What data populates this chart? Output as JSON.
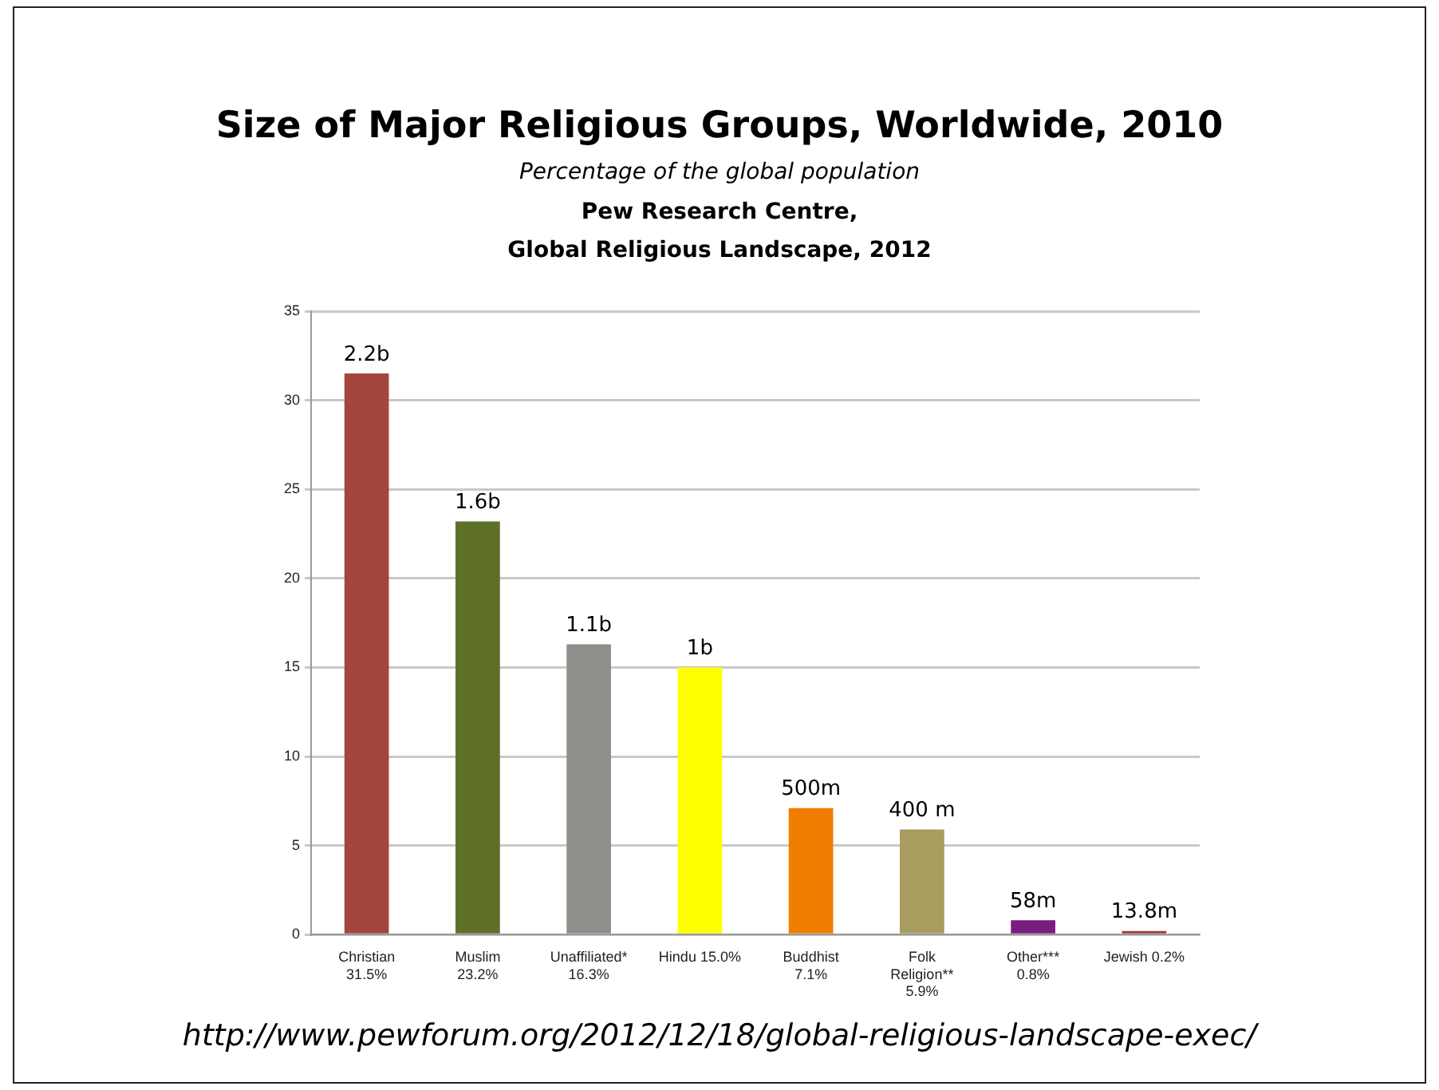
{
  "chart_data": {
    "type": "bar",
    "title": "Size of Major Religious Groups, Worldwide, 2010",
    "subtitle": "Percentage of the global population",
    "annotations": [
      "Pew Research Centre,\nGlobal Religious Landscape, 2012",
      "http://www.pewforum.org/2012/12/18/global-religious-landscape-exec/",
      {
        "text": "2.2b",
        "x": "Christian\n31.5%",
        "y": 31.5
      },
      {
        "text": "1.6b",
        "x": "Muslim\n23.2%",
        "y": 23.2
      },
      {
        "text": "1.1b",
        "x": "Unaffiliated*\n16.3%",
        "y": 16.3
      },
      {
        "text": "1b",
        "x": "Hindu 15.0%",
        "y": 15.0
      },
      {
        "text": "500m",
        "x": "Buddhist\n7.1%",
        "y": 7.1
      },
      {
        "text": "400 m",
        "x": "Folk\nReligion**\n5.9%",
        "y": 5.9
      },
      {
        "text": "58m",
        "x": "Other***\n0.8%",
        "y": 0.8
      },
      {
        "text": "13.8m",
        "x": "Jewish 0.2%",
        "y": 0.2
      }
    ],
    "categories": [
      "Christian\n31.5%",
      "Muslim\n23.2%",
      "Unaffiliated*\n16.3%",
      "Hindu 15.0%",
      "Buddhist\n7.1%",
      "Folk\nReligion**\n5.9%",
      "Other***\n0.8%",
      "Jewish 0.2%"
    ],
    "values": [
      31.5,
      23.2,
      16.3,
      15.0,
      7.1,
      5.9,
      0.8,
      0.2
    ],
    "colors": [
      "#a5463c",
      "#5e7028",
      "#8e8e8b",
      "#ffff00",
      "#f07d00",
      "#a89c5e",
      "#7b1c80",
      "#9b3c46"
    ],
    "ylim": [
      0,
      35
    ],
    "yticks": [
      0,
      5,
      10,
      15,
      20,
      25,
      30,
      35
    ],
    "grid": "y",
    "legend": false
  }
}
